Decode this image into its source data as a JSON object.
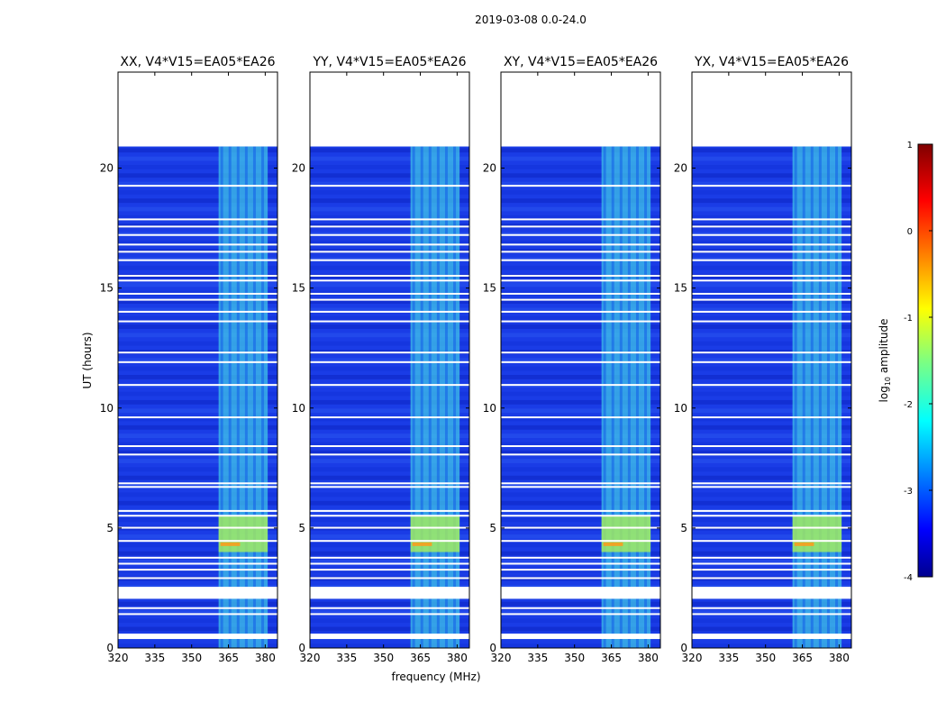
{
  "chart_data": {
    "type": "heatmap",
    "suptitle": "2019-03-08 0.0-24.0",
    "xlabel": "frequency (MHz)",
    "ylabel": "UT (hours)",
    "xlim": [
      320,
      385
    ],
    "ylim": [
      0,
      24
    ],
    "xticks": [
      320,
      335,
      350,
      365,
      380
    ],
    "yticks": [
      0,
      5,
      10,
      15,
      20
    ],
    "data_extent_hours": [
      0,
      20.9
    ],
    "rfi_band_mhz": [
      361,
      381
    ],
    "panels": [
      {
        "id": "xx",
        "title": "XX, V4*V15=EA05*EA26"
      },
      {
        "id": "yy",
        "title": "YY, V4*V15=EA05*EA26"
      },
      {
        "id": "xy",
        "title": "XY, V4*V15=EA05*EA26"
      },
      {
        "id": "yx",
        "title": "YX, V4*V15=EA05*EA26"
      }
    ],
    "colorbar": {
      "label": "log",
      "label_sub": "10",
      "label_tail": " amplitude",
      "range": [
        -4,
        1
      ],
      "ticks": [
        1,
        0,
        -1,
        -2,
        -3,
        -4
      ]
    },
    "flagged_rows_hours": [
      0.45,
      1.45,
      1.7,
      2.25,
      2.95,
      3.3,
      3.55,
      3.8,
      4.5,
      5.05,
      5.55,
      5.75,
      6.75,
      6.9,
      8.1,
      8.45,
      9.65,
      11.0,
      11.95,
      12.35,
      13.65,
      14.05,
      14.55,
      14.8,
      15.35,
      15.55,
      16.2,
      16.55,
      16.85,
      17.25,
      17.6,
      17.9,
      19.3
    ]
  }
}
